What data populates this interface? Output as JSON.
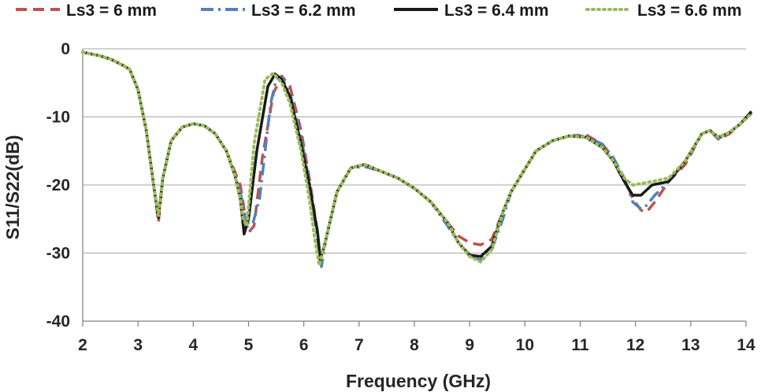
{
  "chart_data": {
    "type": "line",
    "title": "",
    "xlabel": "Frequency (GHz)",
    "ylabel": "S11/S22(dB)",
    "xlim": [
      2,
      14
    ],
    "ylim": [
      -40,
      0
    ],
    "x_ticks": [
      2,
      3,
      4,
      5,
      6,
      7,
      8,
      9,
      10,
      11,
      12,
      13,
      14
    ],
    "y_ticks": [
      0,
      -10,
      -20,
      -30,
      -40
    ],
    "grid": "horizontal",
    "legend_position": "top",
    "series": [
      {
        "name": "Ls3 = 6 mm",
        "color": "#c0504d",
        "style": "dashed",
        "x": [
          2,
          2.3,
          2.5,
          2.7,
          2.85,
          3.0,
          3.15,
          3.3,
          3.37,
          3.45,
          3.6,
          3.8,
          4.0,
          4.2,
          4.4,
          4.6,
          4.75,
          4.85,
          4.95,
          5.0,
          5.1,
          5.25,
          5.45,
          5.6,
          5.75,
          5.95,
          6.1,
          6.25,
          6.3,
          6.4,
          6.6,
          6.85,
          7.1,
          7.4,
          7.7,
          8.0,
          8.3,
          8.6,
          8.8,
          9.0,
          9.2,
          9.4,
          9.6,
          9.75,
          9.9,
          10.2,
          10.5,
          10.8,
          11.1,
          11.4,
          11.6,
          11.8,
          11.95,
          12.1,
          12.2,
          12.35,
          12.6,
          12.9,
          13.2,
          13.35,
          13.5,
          13.7,
          13.9,
          14.1
        ],
        "values": [
          -0.5,
          -1,
          -1.5,
          -2.3,
          -3,
          -6,
          -12,
          -21,
          -25.5,
          -19,
          -13.5,
          -11.5,
          -11,
          -11.3,
          -12.5,
          -15,
          -18,
          -20,
          -25,
          -27,
          -26,
          -16,
          -6.5,
          -4,
          -5.5,
          -12,
          -19,
          -27,
          -31.5,
          -28,
          -21,
          -17.5,
          -17,
          -18,
          -19,
          -20.5,
          -22.5,
          -25.5,
          -27.5,
          -28.5,
          -28.8,
          -28,
          -24,
          -21,
          -19,
          -15,
          -13.5,
          -12.8,
          -12.6,
          -14,
          -16,
          -19,
          -22,
          -23.7,
          -24,
          -22.5,
          -19.5,
          -17,
          -12.5,
          -12,
          -13.3,
          -12.5,
          -11,
          -9.5
        ]
      },
      {
        "name": "Ls3 = 6.2 mm",
        "color": "#4f81bd",
        "style": "dash-dot",
        "x": [
          2,
          2.3,
          2.5,
          2.7,
          2.85,
          3.0,
          3.15,
          3.3,
          3.37,
          3.45,
          3.6,
          3.8,
          4.0,
          4.2,
          4.4,
          4.6,
          4.75,
          4.85,
          4.95,
          5.05,
          5.2,
          5.4,
          5.5,
          5.6,
          5.75,
          5.95,
          6.1,
          6.25,
          6.32,
          6.4,
          6.6,
          6.85,
          7.1,
          7.4,
          7.7,
          8.0,
          8.3,
          8.6,
          8.8,
          9.0,
          9.2,
          9.4,
          9.6,
          9.75,
          9.9,
          10.2,
          10.5,
          10.8,
          11.1,
          11.4,
          11.6,
          11.8,
          11.95,
          12.1,
          12.2,
          12.35,
          12.6,
          12.9,
          13.2,
          13.35,
          13.5,
          13.7,
          13.9,
          14.1
        ],
        "values": [
          -0.5,
          -1,
          -1.5,
          -2.3,
          -3,
          -6,
          -12,
          -21,
          -24.5,
          -19,
          -13.5,
          -11.5,
          -11,
          -11.3,
          -12.5,
          -15,
          -18.5,
          -21,
          -25,
          -26.5,
          -22,
          -8,
          -4.5,
          -4.2,
          -6.5,
          -13,
          -19.5,
          -28,
          -32,
          -28,
          -21,
          -17.5,
          -17.3,
          -18,
          -19,
          -20.5,
          -22.5,
          -26,
          -28.5,
          -30.5,
          -31,
          -29.5,
          -25,
          -21,
          -19,
          -15,
          -13.5,
          -12.8,
          -12.8,
          -14,
          -16,
          -19,
          -22.5,
          -23.5,
          -23,
          -21.5,
          -19.5,
          -16.5,
          -12.5,
          -12,
          -13.2,
          -12.3,
          -11,
          -9.5
        ]
      },
      {
        "name": "Ls3 = 6.4 mm",
        "color": "#1a1a1a",
        "style": "solid",
        "x": [
          2,
          2.3,
          2.5,
          2.7,
          2.85,
          3.0,
          3.15,
          3.3,
          3.37,
          3.45,
          3.6,
          3.8,
          4.0,
          4.2,
          4.4,
          4.6,
          4.75,
          4.85,
          4.92,
          5.0,
          5.15,
          5.35,
          5.48,
          5.6,
          5.75,
          5.95,
          6.1,
          6.25,
          6.3,
          6.4,
          6.6,
          6.85,
          7.1,
          7.4,
          7.7,
          8.0,
          8.3,
          8.6,
          8.8,
          9.0,
          9.2,
          9.4,
          9.6,
          9.75,
          9.9,
          10.2,
          10.5,
          10.8,
          11.1,
          11.4,
          11.6,
          11.8,
          11.95,
          12.1,
          12.3,
          12.6,
          12.9,
          13.2,
          13.35,
          13.5,
          13.7,
          13.9,
          14.1
        ],
        "values": [
          -0.5,
          -1,
          -1.5,
          -2.3,
          -3,
          -6,
          -12,
          -21,
          -24.8,
          -19,
          -13.5,
          -11.5,
          -11,
          -11.3,
          -12.5,
          -15,
          -18.5,
          -22,
          -27.2,
          -25,
          -15,
          -5.5,
          -3.7,
          -4.5,
          -7,
          -14,
          -20,
          -27,
          -31,
          -28,
          -21,
          -17.5,
          -17,
          -18,
          -19,
          -20.5,
          -22.5,
          -25.5,
          -28.5,
          -30.3,
          -30.5,
          -29,
          -24,
          -21,
          -19,
          -15,
          -13.5,
          -12.8,
          -13,
          -14.5,
          -16.5,
          -19.5,
          -21.5,
          -21.5,
          -20,
          -19.5,
          -16.5,
          -12.5,
          -12,
          -13,
          -12.3,
          -11,
          -9.2
        ]
      },
      {
        "name": "Ls3 = 6.6 mm",
        "color": "#9bbb59",
        "style": "dotted",
        "x": [
          2,
          2.3,
          2.5,
          2.7,
          2.85,
          3.0,
          3.15,
          3.3,
          3.37,
          3.45,
          3.6,
          3.8,
          4.0,
          4.2,
          4.4,
          4.6,
          4.75,
          4.85,
          4.9,
          4.97,
          5.1,
          5.3,
          5.45,
          5.6,
          5.75,
          5.95,
          6.1,
          6.2,
          6.28,
          6.4,
          6.6,
          6.85,
          7.1,
          7.4,
          7.7,
          8.0,
          8.3,
          8.6,
          8.8,
          9.0,
          9.2,
          9.4,
          9.6,
          9.75,
          9.9,
          10.2,
          10.5,
          10.8,
          11.1,
          11.4,
          11.6,
          11.8,
          11.95,
          12.1,
          12.3,
          12.6,
          12.9,
          13.2,
          13.35,
          13.5,
          13.7,
          13.9,
          14.1
        ],
        "values": [
          -0.5,
          -1,
          -1.5,
          -2.3,
          -3,
          -6,
          -12,
          -21,
          -24.5,
          -19,
          -13.5,
          -11.5,
          -11,
          -11.3,
          -12.5,
          -15,
          -18.5,
          -22,
          -25,
          -26,
          -14,
          -4.5,
          -3.6,
          -5,
          -8,
          -15,
          -22,
          -28,
          -31.8,
          -28,
          -21,
          -17.5,
          -17,
          -18,
          -19,
          -20.5,
          -22.5,
          -25.5,
          -28.5,
          -30.5,
          -31.3,
          -29.5,
          -24,
          -21,
          -19,
          -15,
          -13.5,
          -12.8,
          -13,
          -14.5,
          -16.5,
          -19,
          -20,
          -19.8,
          -19.5,
          -19,
          -16.5,
          -12.5,
          -12,
          -13,
          -12.3,
          -11,
          -9.5
        ]
      }
    ]
  }
}
